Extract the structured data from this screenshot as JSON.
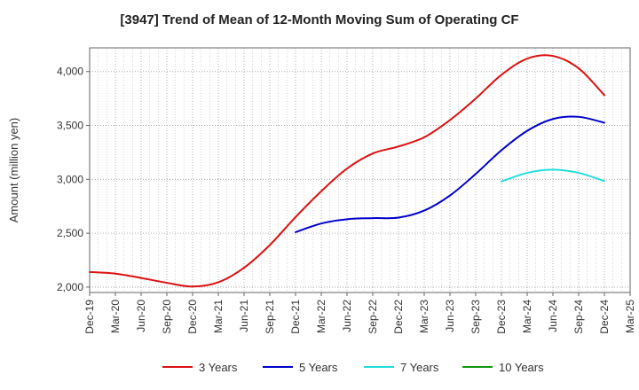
{
  "chart_data": {
    "type": "line",
    "title": "[3947]  Trend of Mean of 12-Month Moving Sum of Operating CF",
    "xlabel": "",
    "ylabel": "Amount (million yen)",
    "ylim": [
      1950,
      4220
    ],
    "yticks": [
      2000,
      2500,
      3000,
      3500,
      4000
    ],
    "ytick_labels": [
      "2,000",
      "2,500",
      "3,000",
      "3,500",
      "4,000"
    ],
    "xticks": [
      "Dec-19",
      "Mar-20",
      "Jun-20",
      "Sep-20",
      "Dec-20",
      "Mar-21",
      "Jun-21",
      "Sep-21",
      "Dec-21",
      "Mar-22",
      "Jun-22",
      "Sep-22",
      "Dec-22",
      "Mar-23",
      "Jun-23",
      "Sep-23",
      "Dec-23",
      "Mar-24",
      "Jun-24",
      "Sep-24",
      "Dec-24",
      "Mar-25"
    ],
    "grid": true,
    "legend_position": "bottom",
    "series": [
      {
        "name": "3 Years",
        "color": "#dd1111",
        "points": [
          [
            0,
            2140
          ],
          [
            1,
            2125
          ],
          [
            2,
            2085
          ],
          [
            3,
            2040
          ],
          [
            4,
            2005
          ],
          [
            5,
            2045
          ],
          [
            6,
            2180
          ],
          [
            7,
            2390
          ],
          [
            8,
            2650
          ],
          [
            9,
            2890
          ],
          [
            10,
            3100
          ],
          [
            11,
            3240
          ],
          [
            12,
            3305
          ],
          [
            13,
            3390
          ],
          [
            14,
            3550
          ],
          [
            15,
            3750
          ],
          [
            16,
            3970
          ],
          [
            17,
            4120
          ],
          [
            18,
            4145
          ],
          [
            19,
            4030
          ],
          [
            20,
            3780
          ]
        ]
      },
      {
        "name": "5 Years",
        "color": "#0000cc",
        "points": [
          [
            8,
            2510
          ],
          [
            9,
            2590
          ],
          [
            10,
            2630
          ],
          [
            11,
            2640
          ],
          [
            12,
            2645
          ],
          [
            13,
            2710
          ],
          [
            14,
            2850
          ],
          [
            15,
            3050
          ],
          [
            16,
            3270
          ],
          [
            17,
            3450
          ],
          [
            18,
            3560
          ],
          [
            19,
            3580
          ],
          [
            20,
            3525
          ]
        ]
      },
      {
        "name": "7 Years",
        "color": "#22dddd",
        "points": [
          [
            16,
            2980
          ],
          [
            17,
            3060
          ],
          [
            18,
            3090
          ],
          [
            19,
            3060
          ],
          [
            20,
            2985
          ]
        ]
      },
      {
        "name": "10 Years",
        "color": "#119911",
        "points": []
      }
    ]
  }
}
